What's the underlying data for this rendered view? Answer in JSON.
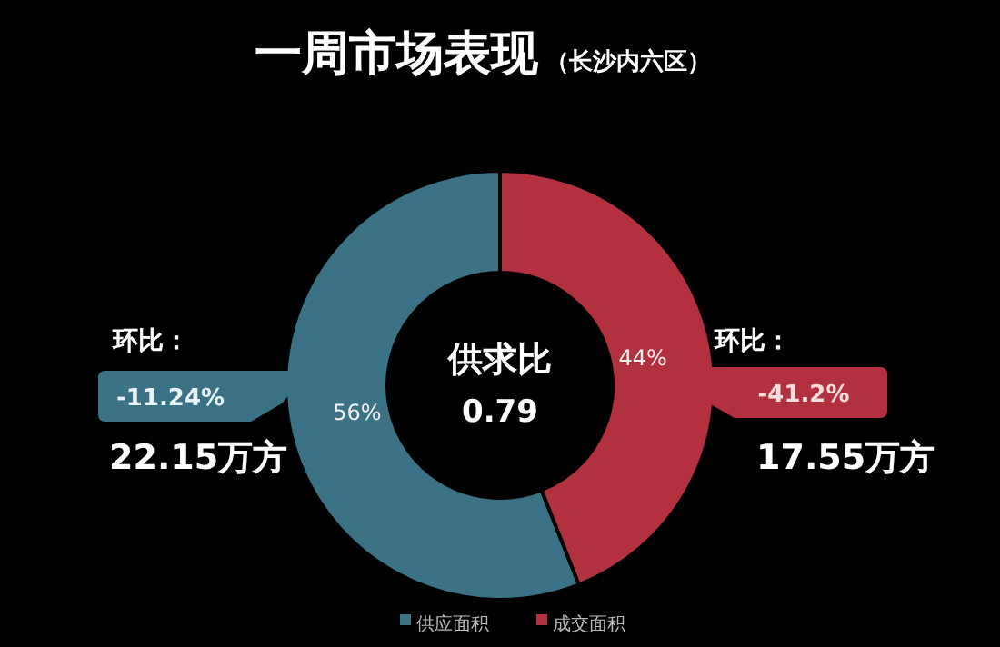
{
  "chart_data": {
    "type": "donut",
    "title": "一周市场表现",
    "subtitle": "（长沙内六区）",
    "categories": [
      "供应面积",
      "成交面积"
    ],
    "values": [
      56,
      44
    ],
    "value_labels": [
      "56%",
      "44%"
    ],
    "colors": [
      "#3b7286",
      "#b3303f"
    ],
    "legend": "bottom",
    "annotations": [
      "供求比",
      "0.79",
      "环比：",
      "-11.24%",
      "22.15万方",
      "环比：",
      "-41.2%",
      "17.55万方"
    ]
  }
}
